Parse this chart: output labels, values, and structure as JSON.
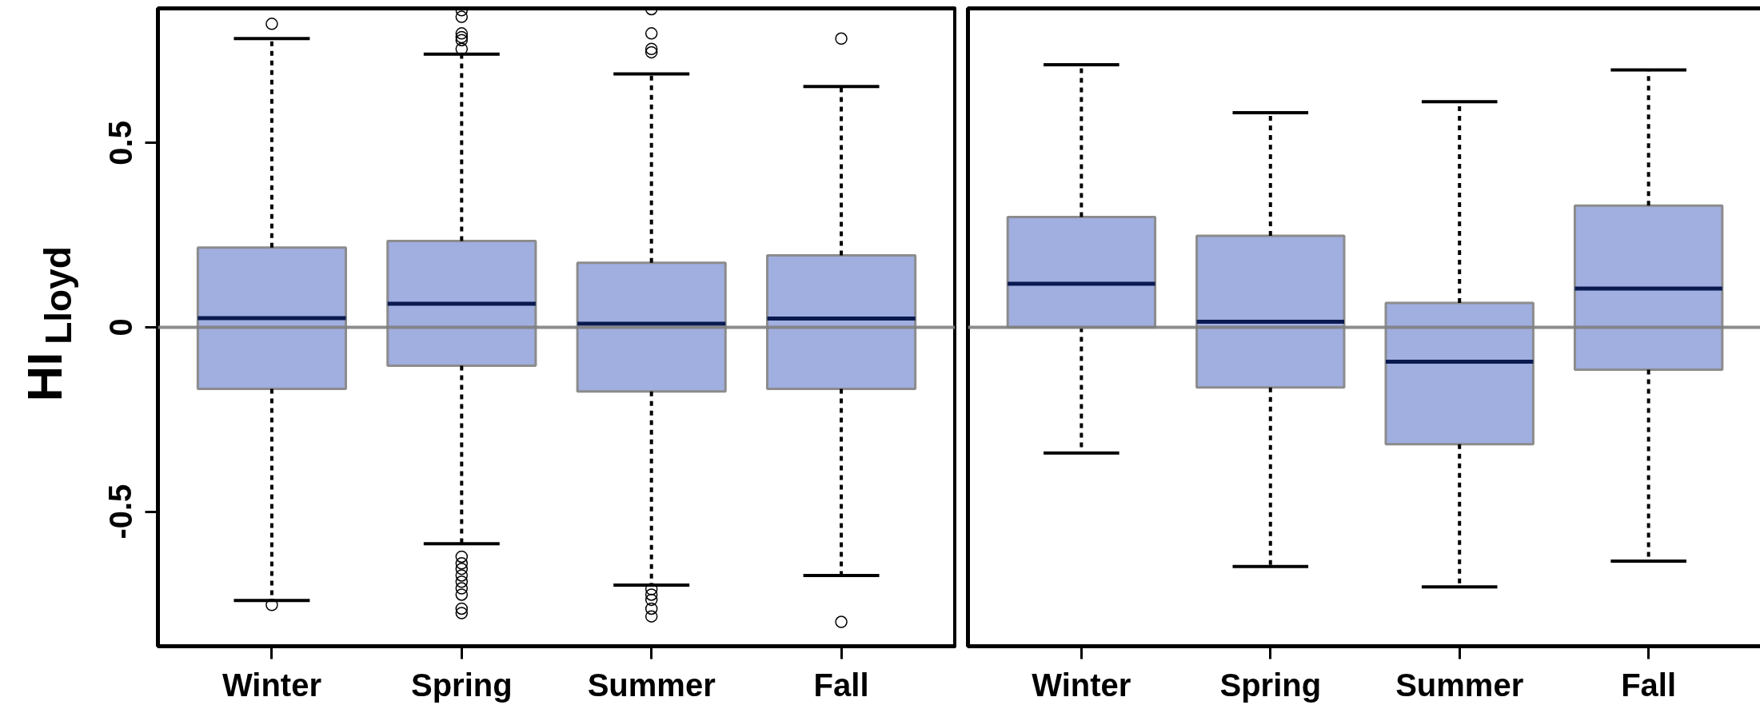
{
  "chart_data": [
    {
      "type": "box",
      "ylabel": "HI$_{Lloyd}$",
      "categories": [
        "Winter",
        "Spring",
        "Summer",
        "Fall"
      ],
      "ylim": [
        -0.865,
        0.865
      ],
      "yticks": [
        -0.5,
        0,
        0.5
      ],
      "series": [
        {
          "color": "#a0aee0",
          "boxes": [
            {
              "low": -0.741,
              "q1": -0.167,
              "median": 0.025,
              "q3": 0.216,
              "high": 0.783,
              "outliers": [
                0.823,
                -0.753
              ]
            },
            {
              "low": -0.587,
              "q1": -0.104,
              "median": 0.064,
              "q3": 0.234,
              "high": 0.741,
              "outliers": [
                0.86,
                0.842,
                0.797,
                0.787,
                0.779,
                0.755,
                -0.622,
                -0.64,
                -0.655,
                -0.673,
                -0.69,
                -0.708,
                -0.725,
                -0.763,
                -0.775
              ]
            },
            {
              "low": -0.699,
              "q1": -0.174,
              "median": 0.01,
              "q3": 0.175,
              "high": 0.687,
              "outliers": [
                0.863,
                0.797,
                0.755,
                0.746,
                -0.71,
                -0.725,
                -0.739,
                -0.763,
                -0.784
              ]
            },
            {
              "low": -0.673,
              "q1": -0.167,
              "median": 0.024,
              "q3": 0.195,
              "high": 0.653,
              "outliers": [
                0.783,
                -0.799
              ]
            }
          ]
        }
      ],
      "ref_lines": [
        {
          "axis": "y",
          "value": 0,
          "color": "#808080"
        }
      ]
    },
    {
      "type": "box",
      "categories": [
        "Winter",
        "Spring",
        "Summer",
        "Fall"
      ],
      "ylim": [
        -0.865,
        0.865
      ],
      "tick_labels": "x",
      "series": [
        {
          "color": "#a0aee0",
          "boxes": [
            {
              "low": -0.341,
              "q1": 0,
              "median": 0.118,
              "q3": 0.299,
              "high": 0.712
            },
            {
              "low": -0.649,
              "q1": -0.163,
              "median": 0.015,
              "q3": 0.248,
              "high": 0.582
            },
            {
              "low": -0.704,
              "q1": -0.317,
              "median": -0.093,
              "q3": 0.066,
              "high": 0.612
            },
            {
              "low": -0.634,
              "q1": -0.115,
              "median": 0.105,
              "q3": 0.33,
              "high": 0.698
            }
          ]
        }
      ],
      "ref_lines": [
        {
          "axis": "y",
          "value": 0,
          "color": "#808080"
        }
      ]
    }
  ]
}
